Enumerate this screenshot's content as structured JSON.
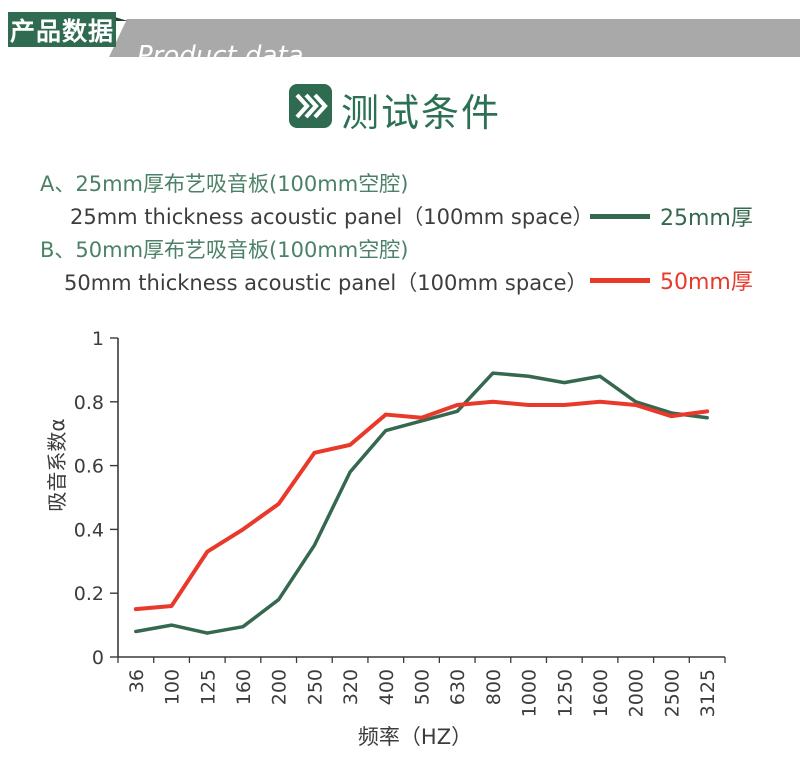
{
  "header": {
    "badge_zh": "产品数据",
    "badge_en": "Product data",
    "badge_bg": "#2e6b50",
    "band_bg": "#a9a9a9"
  },
  "section_title": {
    "text": "测试条件",
    "icon": "triple-chevron-right-icon",
    "color": "#2d7154"
  },
  "conditions": [
    {
      "label_zh": "A、25mm厚布艺吸音板(100mm空腔)",
      "label_en": "25mm thickness acoustic panel（100mm space）"
    },
    {
      "label_zh": "B、50mm厚布艺吸音板(100mm空腔)",
      "label_en": "50mm thickness acoustic panel（100mm space）"
    }
  ],
  "legend": [
    {
      "label": "25mm厚",
      "color": "#35684f"
    },
    {
      "label": "50mm厚",
      "color": "#e8392b"
    }
  ],
  "chart_data": {
    "type": "line",
    "title": "",
    "xlabel": "频率（HZ）",
    "ylabel": "吸音系数α",
    "categories": [
      "36",
      "100",
      "125",
      "160",
      "200",
      "250",
      "320",
      "400",
      "500",
      "630",
      "800",
      "1000",
      "1250",
      "1600",
      "2000",
      "2500",
      "3125"
    ],
    "ylim": [
      0,
      1
    ],
    "yticks": [
      "0",
      "0.2",
      "0.4",
      "0.6",
      "0.8",
      "1"
    ],
    "grid": false,
    "legend_position": "top-right-outside",
    "axis_color": "#3a3a3a",
    "series": [
      {
        "name": "25mm厚",
        "color": "#35684f",
        "values": [
          0.08,
          0.1,
          0.075,
          0.095,
          0.18,
          0.35,
          0.58,
          0.71,
          0.74,
          0.77,
          0.89,
          0.88,
          0.86,
          0.88,
          0.8,
          0.765,
          0.75
        ]
      },
      {
        "name": "50mm厚",
        "color": "#e8392b",
        "values": [
          0.15,
          0.16,
          0.33,
          0.4,
          0.48,
          0.64,
          0.665,
          0.76,
          0.75,
          0.79,
          0.8,
          0.79,
          0.79,
          0.8,
          0.79,
          0.755,
          0.77
        ]
      }
    ]
  }
}
